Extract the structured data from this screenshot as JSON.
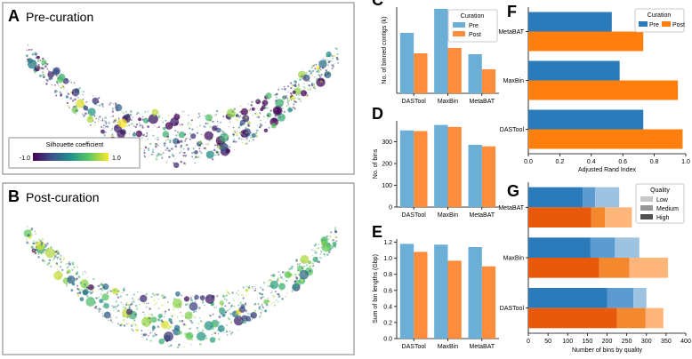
{
  "colors": {
    "pre_light": "#6baed6",
    "post_light": "#fd8d3c",
    "pre_dark": "#2b7bba",
    "post_dark": "#ff7f0e",
    "qual_low": "#c8c8c8",
    "qual_med": "#969696",
    "qual_high": "#505050"
  },
  "panels": {
    "A": {
      "letter": "A",
      "title": "Pre-curation"
    },
    "B": {
      "letter": "B",
      "title": "Post-curation"
    },
    "colorbar": {
      "title": "Silhouette coefficient",
      "min_label": "-1.0",
      "max_label": "1.0",
      "min": -1.0,
      "max": 1.0
    }
  },
  "chart_data": [
    {
      "id": "C",
      "letter": "C",
      "type": "bar",
      "categories": [
        "DASTool",
        "MaxBin",
        "MetaBAT"
      ],
      "series": [
        {
          "name": "Pre",
          "values": [
            68,
            95,
            44
          ]
        },
        {
          "name": "Post",
          "values": [
            45,
            51,
            27
          ]
        }
      ],
      "ylabel": "No. of binned contigs (k)",
      "ylim": [
        0,
        97
      ],
      "yticks": [],
      "legend": {
        "title": "Curation",
        "placement": "top-right"
      }
    },
    {
      "id": "D",
      "letter": "D",
      "type": "bar",
      "categories": [
        "DASTool",
        "MaxBin",
        "MetaBAT"
      ],
      "series": [
        {
          "name": "Pre",
          "values": [
            352,
            377,
            286
          ]
        },
        {
          "name": "Post",
          "values": [
            349,
            368,
            279
          ]
        }
      ],
      "ylabel": "No. of bins",
      "ylim": [
        0,
        396
      ],
      "yticks": [
        "0",
        "100",
        "200",
        "300"
      ]
    },
    {
      "id": "E",
      "letter": "E",
      "type": "bar",
      "categories": [
        "DASTool",
        "MaxBin",
        "MetaBAT"
      ],
      "series": [
        {
          "name": "Pre",
          "values": [
            1.18,
            1.17,
            1.14
          ]
        },
        {
          "name": "Post",
          "values": [
            1.08,
            0.97,
            0.9
          ]
        }
      ],
      "ylabel": "Sum of bin lengths (Gbp)",
      "ylim": [
        0,
        1.24
      ],
      "yticks": [
        "0.0",
        "0.2",
        "0.4",
        "0.6",
        "0.8",
        "1.0",
        "1.2"
      ]
    },
    {
      "id": "F",
      "letter": "F",
      "type": "bar",
      "orientation": "horizontal",
      "categories": [
        "DASTool",
        "MaxBin",
        "MetaBAT"
      ],
      "series": [
        {
          "name": "Pre",
          "values": [
            0.73,
            0.58,
            0.53
          ]
        },
        {
          "name": "Post",
          "values": [
            0.98,
            0.95,
            0.73
          ]
        }
      ],
      "xlabel": "Adjusted Rand Index",
      "xlim": [
        0,
        1.0
      ],
      "xticks": [
        "0.0",
        "0.2",
        "0.4",
        "0.6",
        "0.8",
        "1.0"
      ],
      "legend": {
        "title": "Curation",
        "placement": "top-right"
      }
    },
    {
      "id": "G",
      "letter": "G",
      "type": "bar",
      "orientation": "horizontal",
      "stacked": true,
      "categories": [
        "DASTool",
        "MaxBin",
        "MetaBAT"
      ],
      "stack_levels": [
        "High",
        "Medium",
        "Low"
      ],
      "series": [
        {
          "name": "Pre",
          "high": [
            200,
            158,
            138
          ],
          "medium": [
            67,
            62,
            32
          ],
          "low": [
            33,
            62,
            61
          ]
        },
        {
          "name": "Post",
          "high": [
            225,
            180,
            160
          ],
          "medium": [
            73,
            77,
            35
          ],
          "low": [
            45,
            98,
            68
          ]
        }
      ],
      "xlabel": "Number of bins by quality",
      "xlim": [
        0,
        400
      ],
      "xticks": [
        "0",
        "50",
        "100",
        "150",
        "200",
        "250",
        "300",
        "350",
        "400"
      ],
      "legend": {
        "title": "Quality",
        "items": [
          "Low",
          "Medium",
          "High"
        ],
        "placement": "top-right"
      }
    }
  ]
}
